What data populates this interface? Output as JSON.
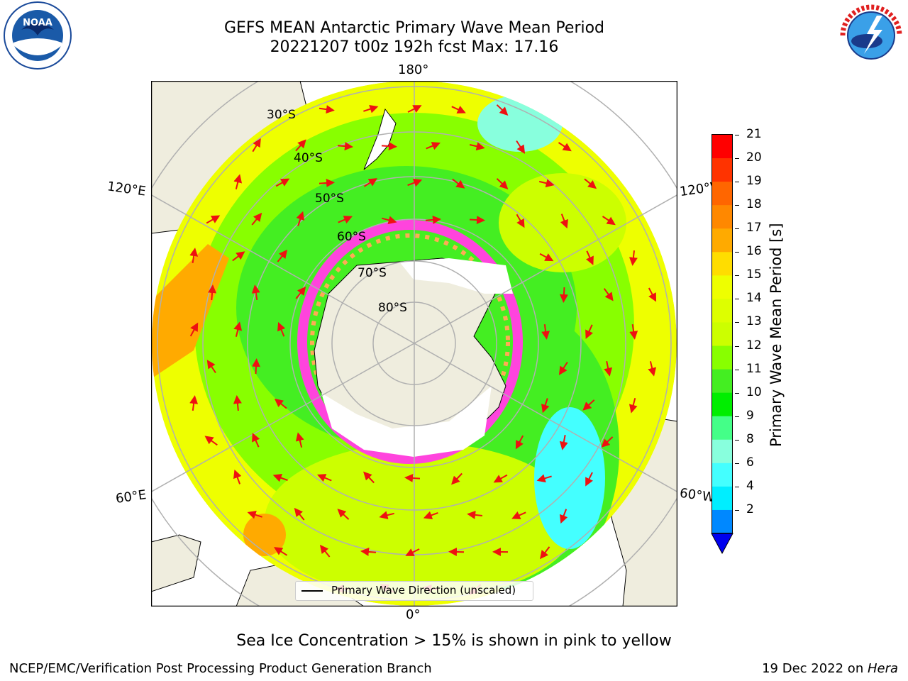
{
  "header": {
    "title_line1": "GEFS MEAN Antarctic Primary Wave Mean Period",
    "title_line2": "20221207 t00z 192h fcst   Max: 17.16"
  },
  "logos": {
    "left": {
      "name": "noaa-logo",
      "text": "NOAA"
    },
    "right": {
      "name": "nws-logo",
      "text": "NATIONAL WEATHER SERVICE"
    }
  },
  "map": {
    "longitude_labels": {
      "top": "180°",
      "bottom": "0°",
      "left_upper": "120°E",
      "left_lower": "60°E",
      "right_upper": "120°W",
      "right_lower": "60°W"
    },
    "latitude_labels": [
      "30°S",
      "40°S",
      "50°S",
      "60°S",
      "70°S",
      "80°S"
    ],
    "legend": {
      "label": "Primary Wave Direction (unscaled)"
    },
    "colors": {
      "ocean_green": "#44ee22",
      "ocean_yellow": "#eeff00",
      "ocean_orange": "#ffaa00",
      "ice_pink": "#ff44dd",
      "land": "#efedde",
      "arrow": "#ee1111",
      "grid": "#b0b0b0"
    }
  },
  "colorbar": {
    "label": "Primary Wave Mean Period [s]",
    "ticks": [
      "21",
      "20",
      "19",
      "18",
      "17",
      "16",
      "15",
      "14",
      "13",
      "12",
      "11",
      "10",
      "9",
      "8",
      "6",
      "4",
      "2"
    ],
    "colors": [
      "#ff0000",
      "#ff3300",
      "#ff6600",
      "#ff8800",
      "#ffaa00",
      "#ffdd00",
      "#eeff00",
      "#ddff00",
      "#ccff00",
      "#88ff00",
      "#44ee22",
      "#00ee00",
      "#44ff88",
      "#88ffdd",
      "#44ffff",
      "#00eeff",
      "#0088ff"
    ],
    "extend_color": "#0000ee"
  },
  "captions": {
    "sea_ice": "Sea Ice Concentration > 15% is shown in pink to yellow",
    "org": "NCEP/EMC/Verification Post Processing Product Generation Branch",
    "date_prefix": "19 Dec 2022 on ",
    "date_host": "Hera"
  }
}
